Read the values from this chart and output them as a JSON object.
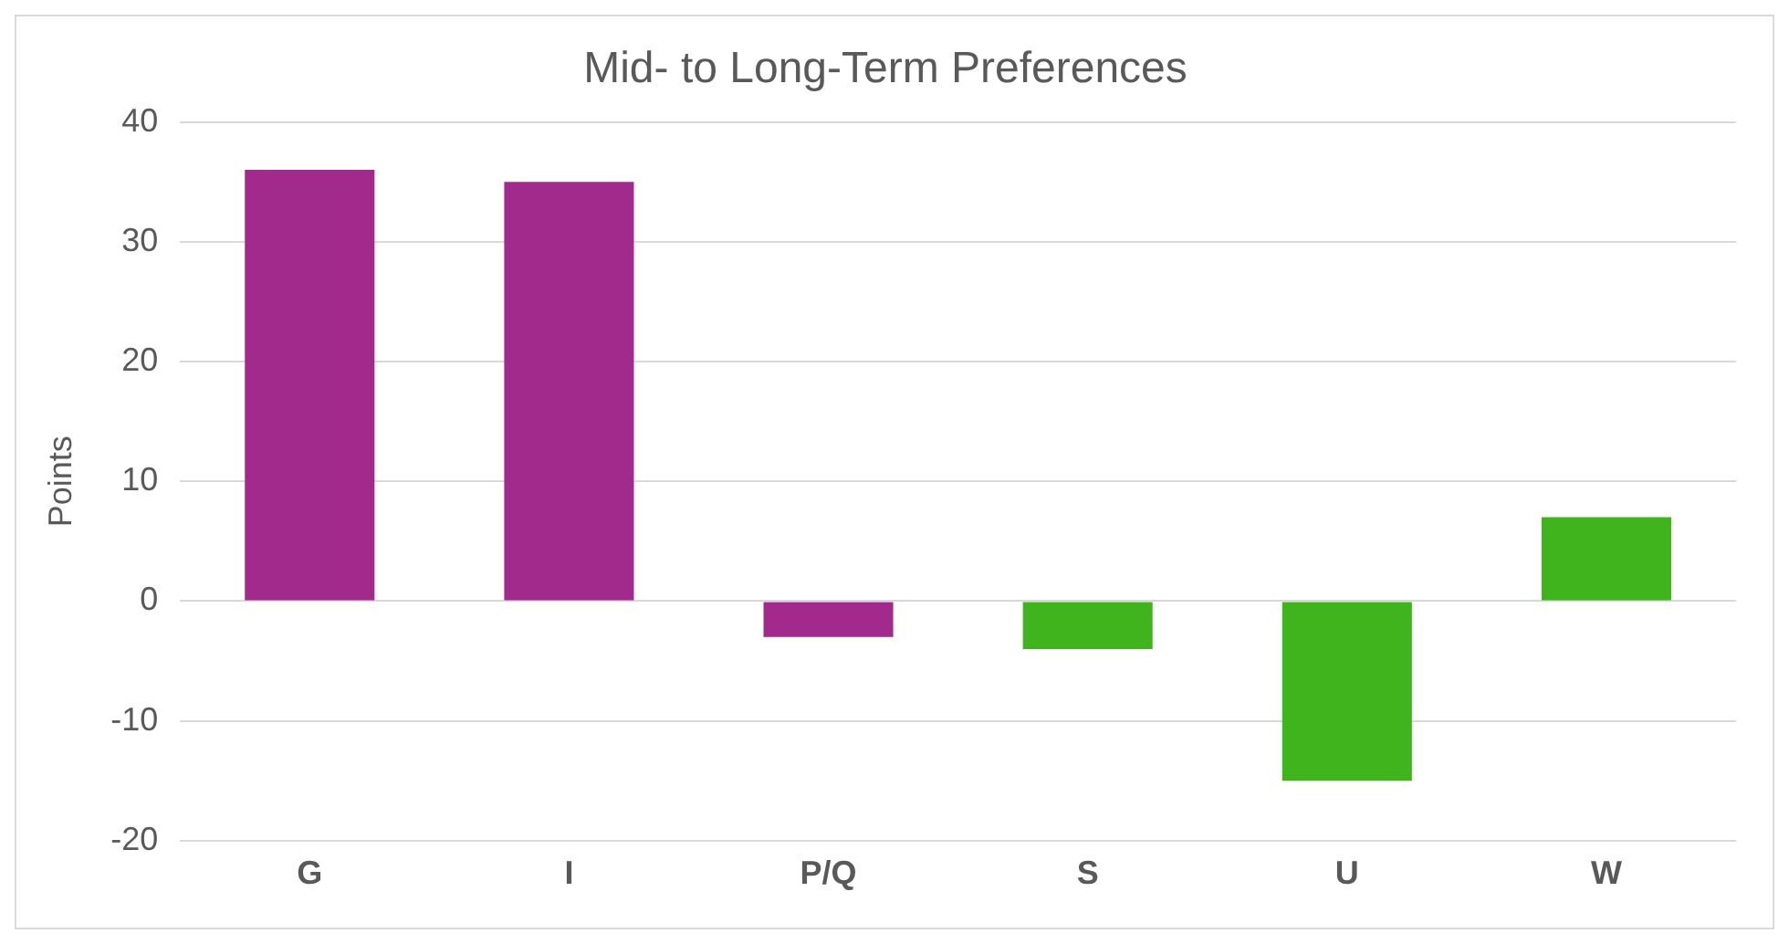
{
  "chart_data": {
    "type": "bar",
    "title": "Mid- to Long-Term Preferences",
    "ylabel": "Points",
    "categories": [
      "G",
      "I",
      "P/Q",
      "S",
      "U",
      "W"
    ],
    "values": [
      36,
      35,
      -3,
      -4,
      -15,
      7
    ],
    "colors": [
      "#a12a8c",
      "#a12a8c",
      "#a12a8c",
      "#3fb41c",
      "#3fb41c",
      "#3fb41c"
    ],
    "ylim": [
      -20,
      40
    ],
    "yticks": [
      -20,
      -10,
      0,
      10,
      20,
      30,
      40
    ],
    "grid": "y",
    "legend": false
  }
}
